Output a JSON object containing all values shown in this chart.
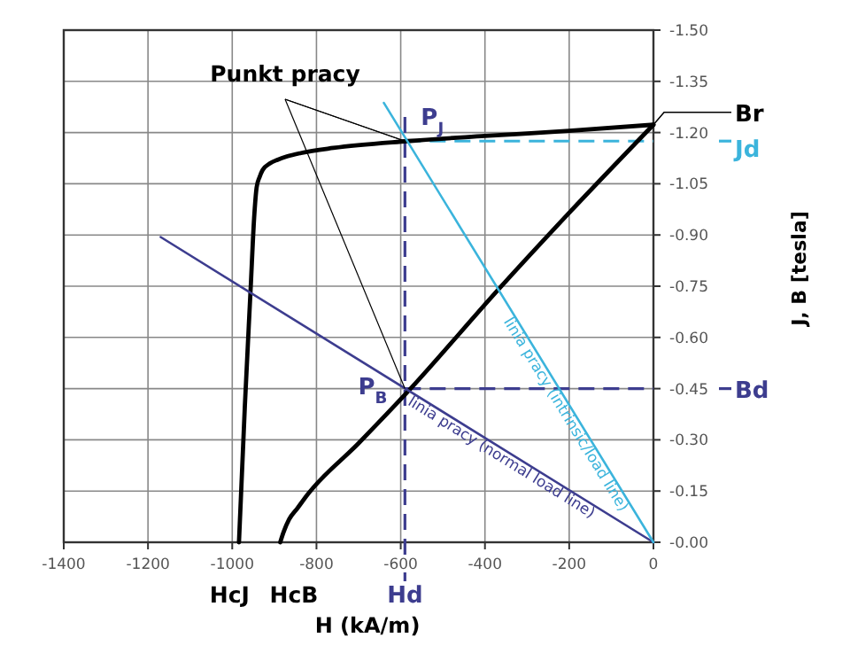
{
  "chart_data": {
    "type": "line",
    "xlabel": "H (kA/m)",
    "ylabel": "J, B [tesla]",
    "xlim": [
      -1400,
      0
    ],
    "ylim": [
      0,
      -1.5
    ],
    "xticks": [
      -1400,
      -1200,
      -1000,
      -800,
      -600,
      -400,
      -200,
      0
    ],
    "yticks": [
      {
        "value": 0,
        "label": "-0.00"
      },
      {
        "value": -0.15,
        "label": "-0.15"
      },
      {
        "value": -0.3,
        "label": "-0.30"
      },
      {
        "value": -0.45,
        "label": "-0.45"
      },
      {
        "value": -0.6,
        "label": "-0.60"
      },
      {
        "value": -0.75,
        "label": "-0.75"
      },
      {
        "value": -0.9,
        "label": "-0.90"
      },
      {
        "value": -1.05,
        "label": "-1.05"
      },
      {
        "value": -1.2,
        "label": "-1.20"
      },
      {
        "value": -1.35,
        "label": "-1.35"
      },
      {
        "value": -1.5,
        "label": "-1.50"
      }
    ],
    "grid": true,
    "marker": "none",
    "series": [
      {
        "color": "#000000",
        "x": [
          -984,
          -970,
          -956,
          -948,
          -942,
          -935,
          -928,
          -910,
          -893,
          -870,
          -837,
          -760,
          -584,
          -400,
          -200,
          0
        ],
        "values": [
          0,
          -0.4,
          -0.75,
          -0.95,
          -1.04,
          -1.07,
          -1.09,
          -1.11,
          -1.12,
          -1.13,
          -1.14,
          -1.155,
          -1.175,
          -1.19,
          -1.205,
          -1.223
        ]
      },
      {
        "color": "#000000",
        "x": [
          -886,
          -878,
          -865,
          -845,
          -823,
          -700,
          -584,
          -367,
          -200,
          0
        ],
        "values": [
          0,
          -0.03,
          -0.067,
          -0.1,
          -0.137,
          -0.29,
          -0.44,
          -0.742,
          -0.965,
          -1.223
        ]
      },
      {
        "name": "linia pracy (normal load line)",
        "color": "#3d3d8f",
        "x": [
          -1170,
          0
        ],
        "values": [
          -0.894,
          0
        ]
      },
      {
        "name": "linia pracy (intrinsic/load line)",
        "color": "#3bb4dc",
        "x": [
          -640,
          0
        ],
        "values": [
          -1.287,
          0
        ]
      }
    ],
    "ref_lines": [
      {
        "axis": "x",
        "value": -590,
        "label": "Hd",
        "color": "#3d3d8f",
        "line_style": "dashed"
      },
      {
        "axis": "y",
        "value": -1.175,
        "label": "Jd",
        "color": "#3bb4dc",
        "line_style": "dashed"
      },
      {
        "axis": "y",
        "value": -0.45,
        "label": "Bd",
        "color": "#3d3d8f",
        "line_style": "dashed"
      }
    ],
    "annotations": [
      {
        "text": "Punkt pracy",
        "x": -590,
        "y": -1.175
      },
      {
        "text": "P$_{J}$",
        "x": -590,
        "y": -1.175
      },
      {
        "text": "P$_{B}$",
        "x": -590,
        "y": -0.45
      },
      {
        "text": "Br",
        "x": 0,
        "y": -1.223
      },
      {
        "text": "HcJ",
        "x": -984,
        "y": 0
      },
      {
        "text": "HcB",
        "x": -886,
        "y": 0
      }
    ]
  }
}
